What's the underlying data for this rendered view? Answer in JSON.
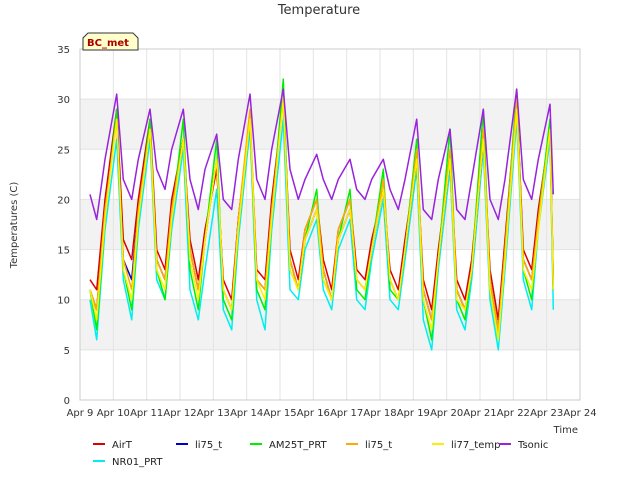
{
  "chart_data": {
    "type": "line",
    "title": "Temperature",
    "xlabel": "Time",
    "ylabel": "Temperatures (C)",
    "badge": "BC_met",
    "xlim": [
      9,
      24
    ],
    "ylim": [
      0,
      35
    ],
    "x_ticks": [
      9,
      10,
      11,
      12,
      13,
      14,
      15,
      16,
      17,
      18,
      19,
      20,
      21,
      22,
      23,
      24
    ],
    "x_tick_labels": [
      "Apr 9",
      "Apr 10",
      "Apr 11",
      "Apr 12",
      "Apr 13",
      "Apr 14",
      "Apr 15",
      "Apr 16",
      "Apr 17",
      "Apr 18",
      "Apr 19",
      "Apr 20",
      "Apr 21",
      "Apr 22",
      "Apr 23",
      "Apr 24"
    ],
    "y_ticks": [
      0,
      5,
      10,
      15,
      20,
      25,
      30,
      35
    ],
    "y_tick_labels": [
      "0",
      "5",
      "10",
      "15",
      "20",
      "25",
      "30",
      "35"
    ],
    "grid": true,
    "alternating_bands": true,
    "legend_placement": "bottom",
    "series": [
      {
        "name": "AirT",
        "color": "#dd0000",
        "x": [
          9.3,
          9.5,
          9.75,
          10.1,
          10.3,
          10.55,
          10.75,
          11.1,
          11.3,
          11.55,
          11.75,
          12.1,
          12.3,
          12.55,
          12.75,
          13.1,
          13.3,
          13.55,
          13.75,
          14.1,
          14.3,
          14.55,
          14.75,
          15.1,
          15.3,
          15.55,
          15.75,
          16.1,
          16.3,
          16.55,
          16.75,
          17.1,
          17.3,
          17.55,
          17.75,
          18.1,
          18.3,
          18.55,
          18.75,
          19.1,
          19.3,
          19.55,
          19.75,
          20.1,
          20.3,
          20.55,
          20.75,
          21.1,
          21.3,
          21.55,
          21.75,
          22.1,
          22.3,
          22.55,
          22.75,
          23.1,
          23.2
        ],
        "y": [
          12,
          11,
          20,
          29,
          16,
          14,
          20,
          28,
          15,
          13,
          20,
          26,
          16,
          12,
          17,
          23,
          12,
          10,
          18,
          28,
          13,
          12,
          20,
          30,
          15,
          12,
          17,
          20,
          14,
          11,
          17,
          20,
          13,
          12,
          16,
          21,
          13,
          11,
          16,
          24,
          12,
          9,
          15,
          24,
          12,
          10,
          14,
          26,
          13,
          8,
          16,
          30,
          15,
          13,
          19,
          27,
          12
        ]
      },
      {
        "name": "NR01_PRT",
        "color": "#00eeee",
        "x": [
          9.3,
          9.5,
          9.75,
          10.1,
          10.3,
          10.55,
          10.75,
          11.1,
          11.3,
          11.55,
          11.75,
          12.1,
          12.3,
          12.55,
          12.75,
          13.1,
          13.3,
          13.55,
          13.75,
          14.1,
          14.3,
          14.55,
          14.75,
          15.1,
          15.3,
          15.55,
          15.75,
          16.1,
          16.3,
          16.55,
          16.75,
          17.1,
          17.3,
          17.55,
          17.75,
          18.1,
          18.3,
          18.55,
          18.75,
          19.1,
          19.3,
          19.55,
          19.75,
          20.1,
          20.3,
          20.55,
          20.75,
          21.1,
          21.3,
          21.55,
          21.75,
          22.1,
          22.3,
          22.55,
          22.75,
          23.1,
          23.2
        ],
        "y": [
          10,
          6,
          17,
          26,
          12,
          8,
          17,
          26,
          12,
          10,
          17,
          25,
          11,
          8,
          13,
          21,
          9,
          7,
          16,
          27,
          10,
          7,
          17,
          28,
          11,
          10,
          15,
          18,
          11,
          9,
          15,
          18,
          10,
          9,
          14,
          20,
          10,
          9,
          14,
          23,
          8,
          5,
          13,
          23,
          9,
          7,
          12,
          25,
          10,
          5,
          13,
          28,
          12,
          9,
          17,
          26,
          9
        ]
      },
      {
        "name": "li75_t",
        "color": "#0000cc",
        "x": [
          9.3,
          9.5,
          9.75,
          10.1,
          10.3,
          10.55,
          10.75,
          11.1,
          11.3,
          11.55,
          11.75,
          12.1,
          12.3,
          12.55,
          12.75,
          13.1,
          13.3,
          13.55,
          13.75,
          14.1,
          14.3,
          14.55,
          14.75,
          15.1,
          15.3,
          15.55,
          15.75,
          16.1,
          16.3,
          16.55,
          16.75,
          17.1,
          17.3,
          17.55,
          17.75,
          18.1,
          18.3,
          18.55,
          18.75,
          19.1,
          19.3,
          19.55,
          19.75,
          20.1,
          20.3,
          20.55,
          20.75,
          21.1,
          21.3,
          21.55,
          21.75,
          22.1,
          22.3,
          22.55,
          22.75,
          23.1,
          23.2
        ],
        "y": [
          11,
          9,
          19,
          28,
          14,
          12,
          19,
          27,
          14,
          12,
          19,
          26,
          15,
          11,
          16,
          24,
          11,
          9,
          18,
          28,
          12,
          11,
          19,
          30,
          14,
          11,
          16,
          19,
          13,
          10,
          16,
          19,
          12,
          11,
          15,
          21,
          12,
          10,
          15,
          24,
          11,
          8,
          14,
          24,
          11,
          9,
          13,
          26,
          12,
          7,
          15,
          30,
          14,
          12,
          18,
          27,
          11
        ]
      },
      {
        "name": "AM25T_PRT",
        "color": "#00ee00",
        "x": [
          9.3,
          9.5,
          9.75,
          10.1,
          10.3,
          10.55,
          10.75,
          11.1,
          11.3,
          11.55,
          11.75,
          12.1,
          12.3,
          12.55,
          12.75,
          13.1,
          13.3,
          13.55,
          13.75,
          14.1,
          14.3,
          14.55,
          14.75,
          15.1,
          15.3,
          15.55,
          15.75,
          16.1,
          16.3,
          16.55,
          16.75,
          17.1,
          17.3,
          17.55,
          17.75,
          18.1,
          18.3,
          18.55,
          18.75,
          19.1,
          19.3,
          19.55,
          19.75,
          20.1,
          20.3,
          20.55,
          20.75,
          21.1,
          21.3,
          21.55,
          21.75,
          22.1,
          22.3,
          22.55,
          22.75,
          23.1,
          23.2
        ],
        "y": [
          11,
          7,
          18,
          29,
          13,
          9,
          18,
          28,
          13,
          10,
          18,
          28,
          13,
          9,
          16,
          26,
          10,
          8,
          17,
          28,
          11,
          9,
          18,
          32,
          13,
          11,
          16,
          21,
          12,
          10,
          16,
          21,
          11,
          10,
          15,
          23,
          11,
          10,
          15,
          26,
          10,
          6,
          14,
          27,
          10,
          8,
          13,
          29,
          11,
          6,
          15,
          31,
          13,
          10,
          18,
          28,
          11
        ]
      },
      {
        "name": "li75_t",
        "color": "#ffaa00",
        "x": [
          9.3,
          9.5,
          9.75,
          10.1,
          10.3,
          10.55,
          10.75,
          11.1,
          11.3,
          11.55,
          11.75,
          12.1,
          12.3,
          12.55,
          12.75,
          13.1,
          13.3,
          13.55,
          13.75,
          14.1,
          14.3,
          14.55,
          14.75,
          15.1,
          15.3,
          15.55,
          15.75,
          16.1,
          16.3,
          16.55,
          16.75,
          17.1,
          17.3,
          17.55,
          17.75,
          18.1,
          18.3,
          18.55,
          18.75,
          19.1,
          19.3,
          19.55,
          19.75,
          20.1,
          20.3,
          20.55,
          20.75,
          21.1,
          21.3,
          21.55,
          21.75,
          22.1,
          22.3,
          22.55,
          22.75,
          23.1,
          23.2
        ],
        "y": [
          11,
          9,
          19,
          28,
          14,
          11,
          19,
          27,
          14,
          12,
          19,
          26,
          15,
          11,
          16,
          24,
          11,
          9,
          18,
          29,
          12,
          11,
          19,
          30,
          14,
          11,
          17,
          20,
          13,
          10,
          17,
          20,
          12,
          11,
          15,
          22,
          12,
          10,
          15,
          25,
          11,
          8,
          14,
          25,
          11,
          9,
          13,
          27,
          12,
          7,
          15,
          30,
          14,
          12,
          18,
          27,
          11
        ]
      },
      {
        "name": "li77_temp",
        "color": "#ffee00",
        "x": [
          9.3,
          9.5,
          9.75,
          10.1,
          10.3,
          10.55,
          10.75,
          11.1,
          11.3,
          11.55,
          11.75,
          12.1,
          12.3,
          12.55,
          12.75,
          13.1,
          13.3,
          13.55,
          13.75,
          14.1,
          14.3,
          14.55,
          14.75,
          15.1,
          15.3,
          15.55,
          15.75,
          16.1,
          16.3,
          16.55,
          16.75,
          17.1,
          17.3,
          17.55,
          17.75,
          18.1,
          18.3,
          18.55,
          18.75,
          19.1,
          19.3,
          19.55,
          19.75,
          20.1,
          20.3,
          20.55,
          20.75,
          21.1,
          21.3,
          21.55,
          21.75,
          22.1,
          22.3,
          22.55,
          22.75,
          23.1,
          23.2
        ],
        "y": [
          11,
          8,
          18,
          28,
          13,
          10,
          18,
          27,
          13,
          11,
          18,
          26,
          14,
          10,
          16,
          24,
          11,
          9,
          17,
          28,
          12,
          10,
          18,
          30,
          13,
          11,
          16,
          19,
          12,
          10,
          16,
          19,
          12,
          11,
          15,
          21,
          12,
          10,
          15,
          24,
          10,
          7,
          14,
          24,
          10,
          9,
          13,
          26,
          11,
          6,
          14,
          29,
          13,
          11,
          17,
          27,
          11
        ]
      },
      {
        "name": "Tsonic",
        "color": "#9922dd",
        "x": [
          9.3,
          9.5,
          9.75,
          10.1,
          10.3,
          10.55,
          10.75,
          11.1,
          11.3,
          11.55,
          11.75,
          12.1,
          12.3,
          12.55,
          12.75,
          13.1,
          13.3,
          13.55,
          13.75,
          14.1,
          14.3,
          14.55,
          14.75,
          15.1,
          15.3,
          15.55,
          15.75,
          16.1,
          16.3,
          16.55,
          16.75,
          17.1,
          17.3,
          17.55,
          17.75,
          18.1,
          18.3,
          18.55,
          18.75,
          19.1,
          19.3,
          19.55,
          19.75,
          20.1,
          20.3,
          20.55,
          20.75,
          21.1,
          21.3,
          21.55,
          21.75,
          22.1,
          22.3,
          22.55,
          22.75,
          23.1,
          23.2
        ],
        "y": [
          20.5,
          18,
          24,
          30.5,
          22,
          20,
          24,
          29,
          23,
          21,
          25,
          29,
          22,
          19,
          23,
          26.5,
          20,
          19,
          24,
          30.5,
          22,
          20,
          25,
          31,
          23,
          20,
          22,
          24.5,
          22,
          20,
          22,
          24,
          21,
          20,
          22,
          24,
          21,
          19,
          22,
          28,
          19,
          18,
          22,
          27,
          19,
          18,
          22,
          29,
          20,
          18,
          22,
          31,
          22,
          20,
          24,
          29.5,
          20.5
        ]
      }
    ]
  }
}
